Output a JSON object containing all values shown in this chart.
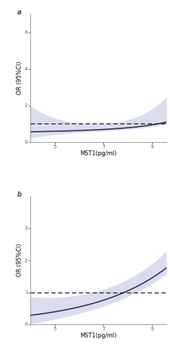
{
  "panel_a": {
    "label": "a",
    "x_min": 4.0,
    "x_max": 9.6,
    "y_min": 0.0,
    "y_max": 7.0,
    "y_ticks": [
      0,
      2,
      4,
      6
    ],
    "x_ticks": [
      5,
      7,
      9
    ],
    "xlabel": "MST1(pg/ml)",
    "ylabel": "OR (95%CI)",
    "ref_y": 1.0,
    "curve_color": "#2d2d4a",
    "ci_color": "#b0b5dc",
    "ci_alpha": 0.45,
    "dashed_color": "#111111"
  },
  "panel_b": {
    "label": "b",
    "x_min": 4.0,
    "x_max": 9.6,
    "y_min": 0.0,
    "y_max": 4.0,
    "y_ticks": [
      0,
      1,
      2,
      3
    ],
    "x_ticks": [
      5,
      7,
      9
    ],
    "xlabel": "MST1(pg/ml)",
    "ylabel": "OR (95%CI)",
    "ref_y": 1.0,
    "curve_color": "#2d2d4a",
    "ci_color": "#b0b5dc",
    "ci_alpha": 0.45,
    "dashed_color": "#111111"
  },
  "figure_bg": "#ffffff",
  "tick_fontsize": 5,
  "axis_label_fontsize": 6
}
